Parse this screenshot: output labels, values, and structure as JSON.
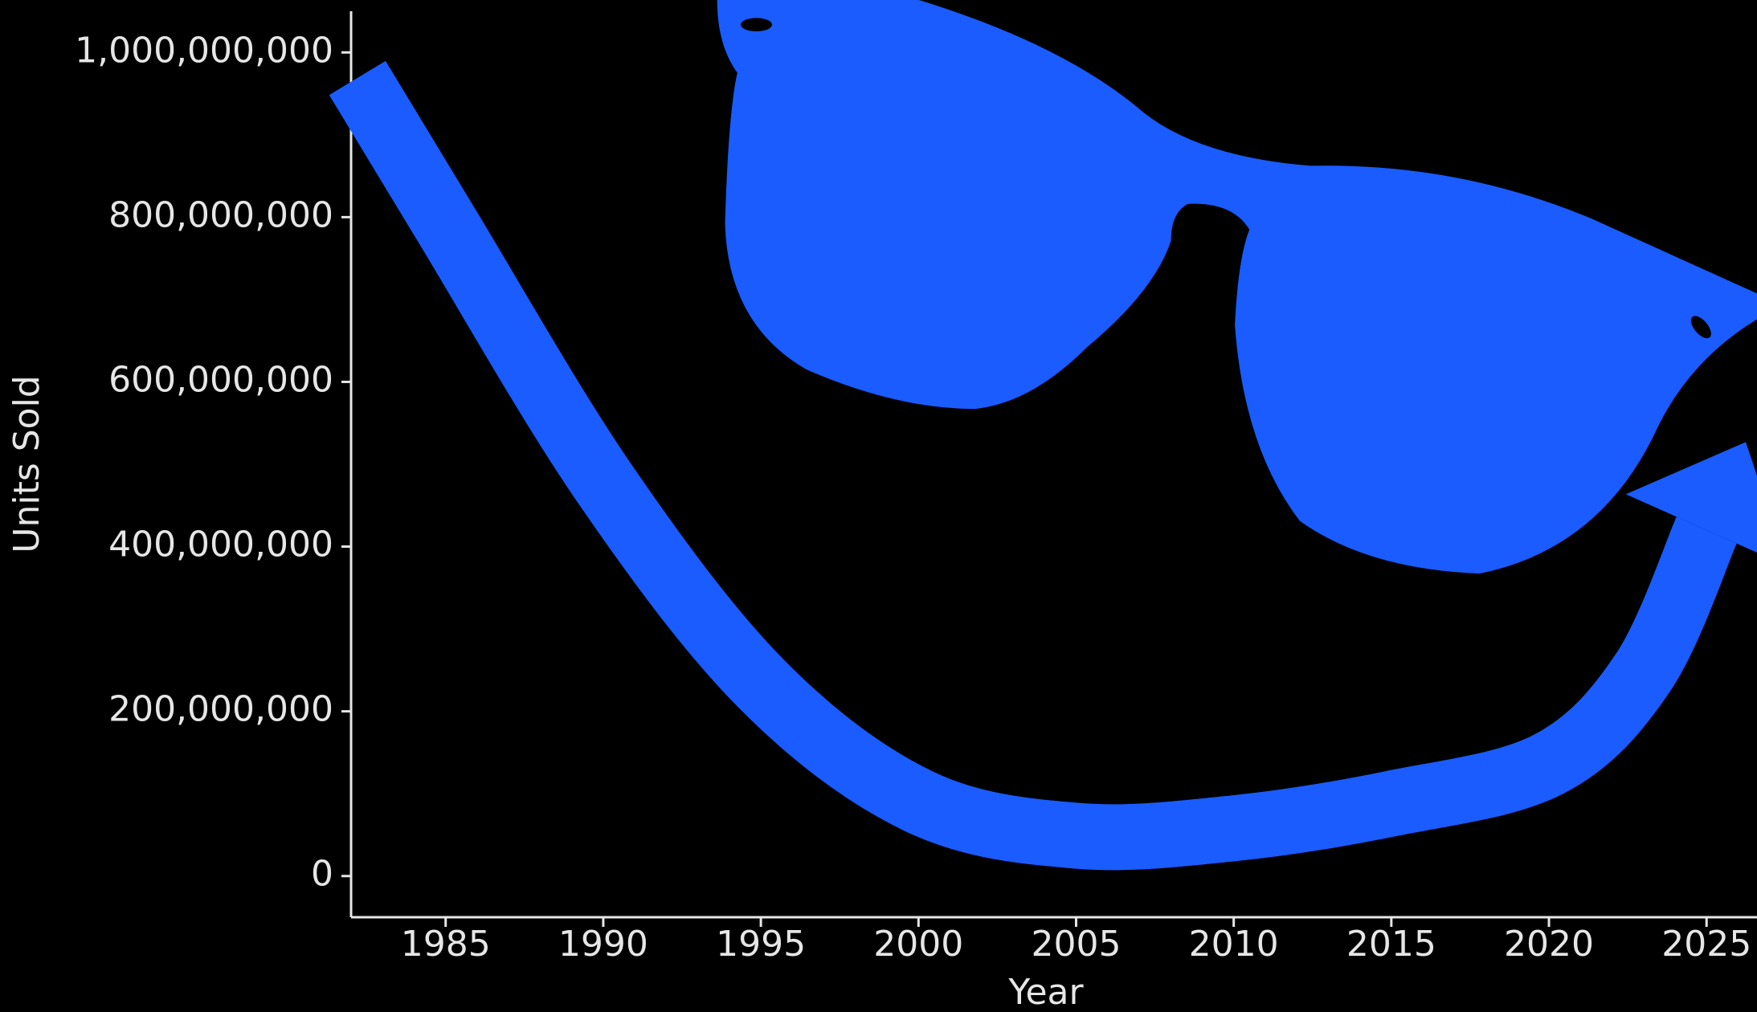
{
  "chart_data": {
    "type": "line",
    "x": [
      1982.2,
      1985,
      1990,
      1995,
      2000,
      2005,
      2010,
      2015,
      2020,
      2023,
      2025
    ],
    "values": [
      969000000,
      792000000,
      479000000,
      234000000,
      91000000,
      49000000,
      58000000,
      88000000,
      136000000,
      248000000,
      420000000
    ],
    "color": "#1a5cff",
    "xlabel": "Year",
    "ylabel": "Units Sold",
    "xlim": [
      1982,
      2026.6
    ],
    "ylim": [
      -50000000,
      1050000000
    ],
    "xticks": [
      1985,
      1990,
      1995,
      2000,
      2005,
      2010,
      2015,
      2020,
      2025
    ],
    "yticks": [
      {
        "value": 0,
        "label": "0"
      },
      {
        "value": 200000000,
        "label": "200,000,000"
      },
      {
        "value": 400000000,
        "label": "400,000,000"
      },
      {
        "value": 600000000,
        "label": "600,000,000"
      },
      {
        "value": 800000000,
        "label": "800,000,000"
      },
      {
        "value": 1000000000,
        "label": "1,000,000,000"
      }
    ],
    "grid": false
  }
}
